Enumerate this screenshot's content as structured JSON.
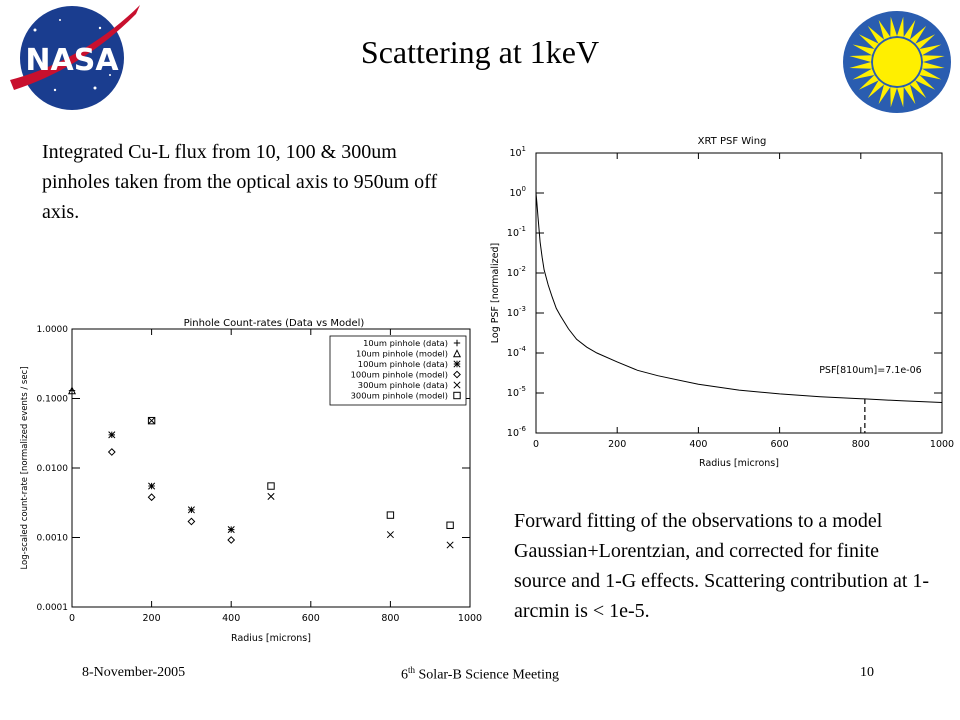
{
  "slide": {
    "title": "Scattering at 1keV",
    "left_text": "Integrated Cu-L flux from 10, 100 & 300um pinholes taken from the optical axis to 950um off axis.",
    "right_text": "Forward fitting of the observations to a model Gaussian+Lorentzian, and corrected for finite source and 1-G effects. Scattering contribution at 1-arcmin is < 1e-5.",
    "footer_date": "8-November-2005",
    "footer_meeting_num": "6",
    "footer_meeting_sup": "th",
    "footer_meeting_rest": " Solar-B Science Meeting",
    "footer_page": "10",
    "logo_left": "NASA",
    "colors": {
      "nasa_blue": "#1a3d8f",
      "nasa_red": "#c8102e",
      "sun_yellow": "#ffef00",
      "sun_blue": "#2a5db0"
    }
  },
  "chart_data": [
    {
      "type": "line",
      "title": "XRT PSF Wing",
      "xlabel": "Radius [microns]",
      "ylabel": "Log PSF [normalized]",
      "xlim": [
        0,
        1000
      ],
      "ylim": [
        1e-06,
        10
      ],
      "yscale": "log",
      "xticks": [
        "0",
        "200",
        "400",
        "600",
        "800",
        "1000"
      ],
      "yticks": [
        {
          "base": "10",
          "exp": "1"
        },
        {
          "base": "10",
          "exp": "0"
        },
        {
          "base": "10",
          "exp": "-1"
        },
        {
          "base": "10",
          "exp": "-2"
        },
        {
          "base": "10",
          "exp": "-3"
        },
        {
          "base": "10",
          "exp": "-4"
        },
        {
          "base": "10",
          "exp": "-5"
        },
        {
          "base": "10",
          "exp": "-6"
        }
      ],
      "annotation": "PSF[810um]=7.1e-06",
      "marker_x": 810,
      "marker_y": 7.1e-06,
      "series": [
        {
          "x": [
            0,
            2,
            5,
            10,
            15,
            20,
            30,
            40,
            50,
            60,
            80,
            100,
            125,
            150,
            200,
            250,
            300,
            400,
            500,
            600,
            700,
            800,
            810,
            900,
            1000
          ],
          "y": [
            1.0,
            0.6,
            0.25,
            0.06,
            0.025,
            0.012,
            0.005,
            0.0025,
            0.0013,
            0.00085,
            0.0004,
            0.00022,
            0.00014,
            0.0001,
            6e-05,
            3.7e-05,
            2.7e-05,
            1.65e-05,
            1.18e-05,
            9.5e-06,
            8.1e-06,
            7.2e-06,
            7.1e-06,
            6.4e-06,
            5.8e-06
          ]
        }
      ]
    },
    {
      "type": "scatter",
      "title": "Pinhole Count-rates (Data vs Model)",
      "xlabel": "Radius [microns]",
      "ylabel": "Log-scaled count-rate [normalized events / sec]",
      "xlim": [
        0,
        1000
      ],
      "ylim": [
        0.0001,
        1.0
      ],
      "yscale": "log",
      "xticks": [
        "0",
        "200",
        "400",
        "600",
        "800",
        "1000"
      ],
      "yticks": [
        "1.0000",
        "0.1000",
        "0.0100",
        "0.0010",
        "0.0001"
      ],
      "legend_position": "top-right",
      "series": [
        {
          "name": "10um pinhole (data)",
          "marker": "plus",
          "x": [
            0
          ],
          "y": [
            0.13
          ]
        },
        {
          "name": "10um pinhole (model)",
          "marker": "triangle",
          "x": [
            0
          ],
          "y": [
            0.13
          ]
        },
        {
          "name": "100um pinhole (data)",
          "marker": "asterisk",
          "x": [
            100,
            200,
            300,
            400
          ],
          "y": [
            0.03,
            0.0055,
            0.0025,
            0.0013
          ]
        },
        {
          "name": "100um pinhole (model)",
          "marker": "diamond",
          "x": [
            100,
            200,
            300,
            400
          ],
          "y": [
            0.017,
            0.0038,
            0.0017,
            0.00092
          ]
        },
        {
          "name": "300um pinhole (data)",
          "marker": "x",
          "x": [
            200,
            500,
            800,
            950
          ],
          "y": [
            0.048,
            0.0039,
            0.0011,
            0.00078
          ]
        },
        {
          "name": "300um pinhole (model)",
          "marker": "square",
          "x": [
            200,
            500,
            800,
            950
          ],
          "y": [
            0.048,
            0.0055,
            0.0021,
            0.0015
          ]
        }
      ]
    }
  ]
}
